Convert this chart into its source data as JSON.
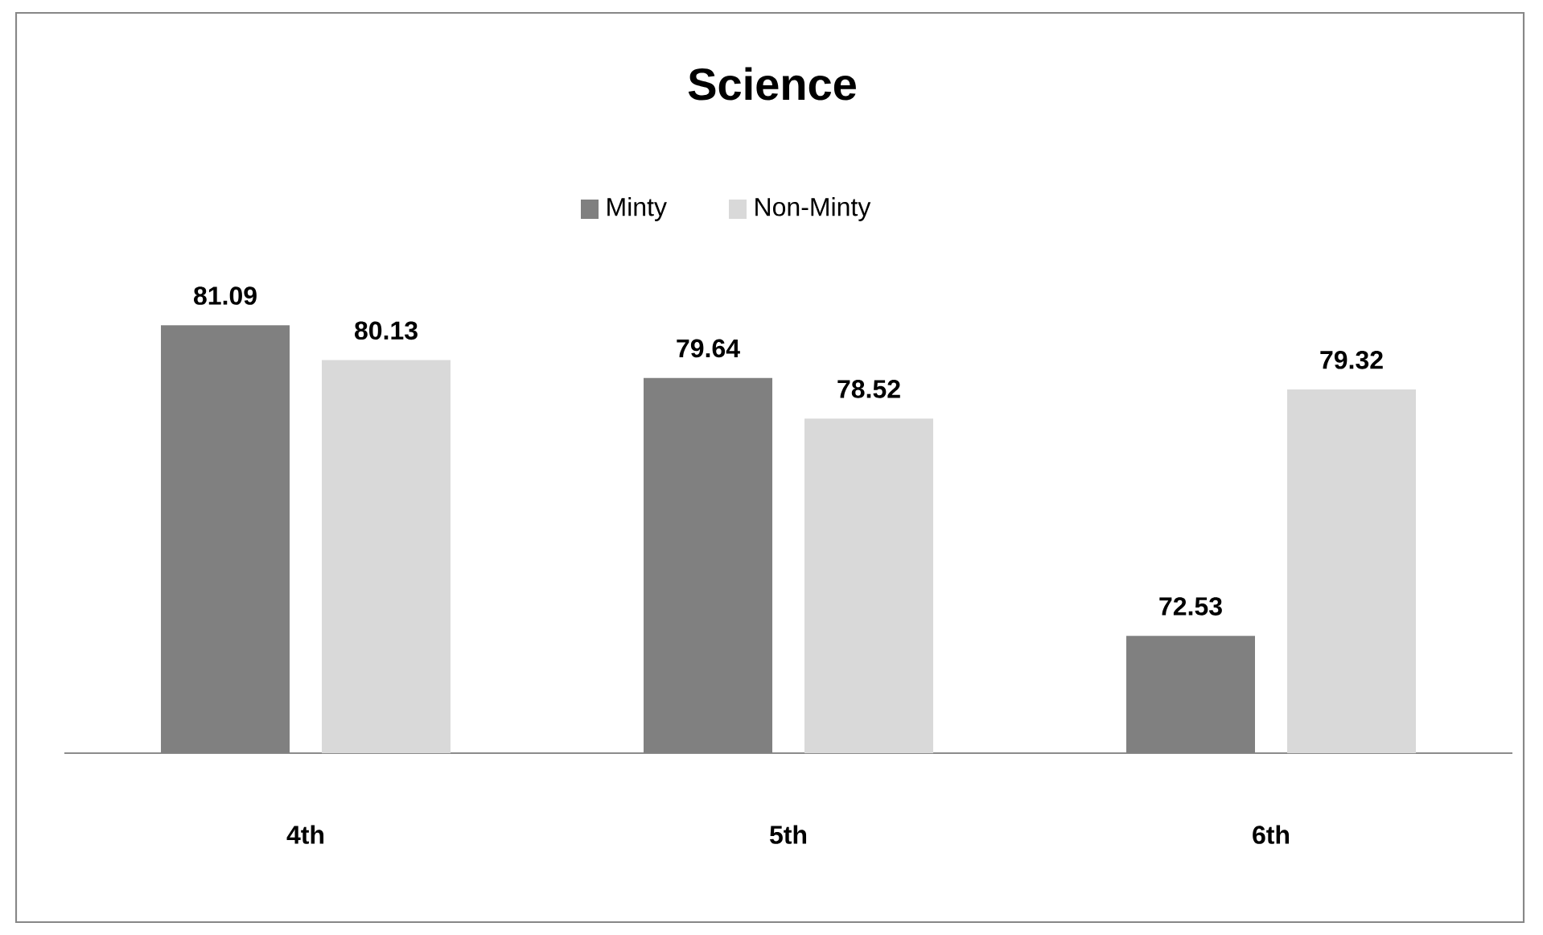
{
  "chart_data": {
    "type": "bar",
    "title": "Science",
    "categories": [
      "4th",
      "5th",
      "6th"
    ],
    "series": [
      {
        "name": "Minty",
        "color": "#808080",
        "values": [
          81.09,
          79.64,
          72.53
        ]
      },
      {
        "name": "Non-Minty",
        "color": "#d9d9d9",
        "values": [
          80.13,
          78.52,
          79.32
        ]
      }
    ],
    "ylim": [
      69.3,
      89.7
    ],
    "data_labels": true,
    "legend": "top"
  }
}
